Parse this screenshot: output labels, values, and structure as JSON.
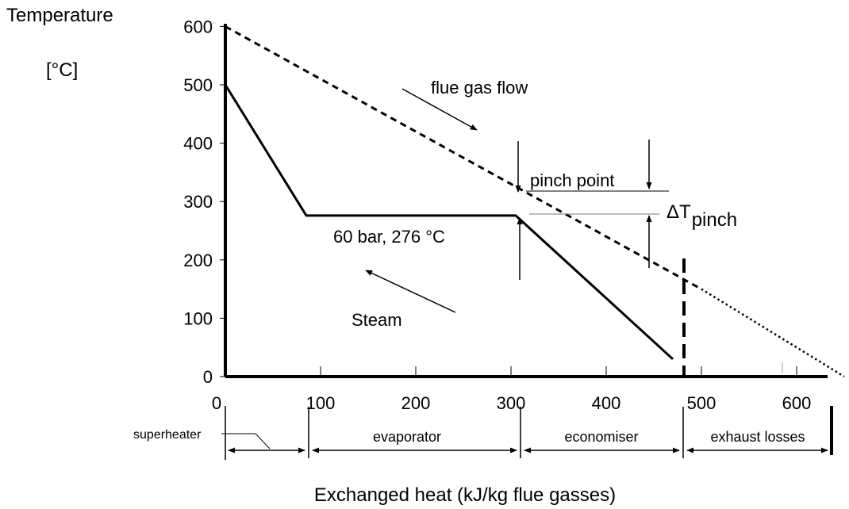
{
  "chart_data": {
    "type": "line",
    "ylabel_line1": "Temperature",
    "ylabel_line2": "[°C]",
    "xlabel": "Exchanged heat (kJ/kg flue gasses)",
    "xlim": [
      0,
      650
    ],
    "ylim": [
      0,
      600
    ],
    "xticks": [
      0,
      100,
      200,
      300,
      400,
      500,
      600
    ],
    "yticks": [
      0,
      100,
      200,
      300,
      400,
      500,
      600
    ],
    "series": [
      {
        "style": "dashed",
        "points": [
          [
            0,
            600
          ],
          [
            500,
            150
          ]
        ]
      },
      {
        "style": "dotted",
        "points": [
          [
            500,
            150
          ],
          [
            650,
            0
          ]
        ]
      },
      {
        "style": "solid",
        "points": [
          [
            0,
            500
          ],
          [
            85,
            276
          ],
          [
            305,
            276
          ],
          [
            470,
            30
          ]
        ]
      }
    ],
    "annotations": {
      "flue_gas": "flue gas flow",
      "pinch_point": "pinch point",
      "delta_t": "ΔT",
      "delta_t_sub": "pinch",
      "pressure": "60 bar, 276 °C",
      "steam": "Steam"
    },
    "sections": [
      {
        "label": "superheater",
        "from": 0,
        "to": 85
      },
      {
        "label": "evaporator",
        "from": 85,
        "to": 305
      },
      {
        "label": "economiser",
        "from": 305,
        "to": 470
      },
      {
        "label": "exhaust losses",
        "from": 470,
        "to": 650
      }
    ]
  }
}
